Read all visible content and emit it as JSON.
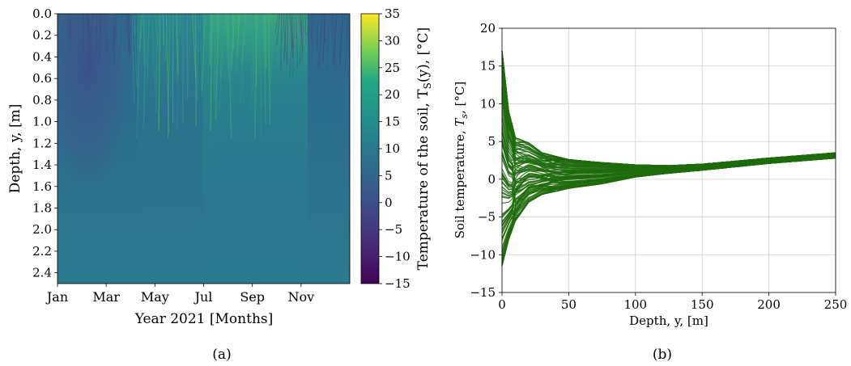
{
  "chart_data": [
    {
      "type": "heatmap",
      "panel_label": "(a)",
      "xlabel": "Year 2021 [Months]",
      "ylabel": "Depth, y, [m]",
      "colorbar_label": "Temperature of the soil, T_S(y), [°C]",
      "colorbar_label_parts": {
        "prefix": "Temperature of the soil, T",
        "sub": "S",
        "suffix": "(y), [°C]"
      },
      "colormap": "viridis",
      "x_ticks": [
        "Jan",
        "Mar",
        "May",
        "Jul",
        "Sep",
        "Nov"
      ],
      "y_ticks": [
        "0.0",
        "0.2",
        "0.4",
        "0.6",
        "0.8",
        "1.0",
        "1.2",
        "1.4",
        "1.6",
        "1.8",
        "2.0",
        "2.2",
        "2.4"
      ],
      "ylim": [
        2.5,
        0.0
      ],
      "clim": [
        -15,
        35
      ],
      "colorbar_ticks": [
        "35",
        "30",
        "25",
        "20",
        "15",
        "10",
        "5",
        "0",
        "−5",
        "−10",
        "−15"
      ]
    },
    {
      "type": "line",
      "panel_label": "(b)",
      "xlabel": "Depth, y, [m]",
      "ylabel": "Soil temperature, T_s, [°C]",
      "ylabel_parts": {
        "prefix": "Soil temperature, ",
        "var": "T",
        "sub": "s",
        "suffix": ", [°C]"
      },
      "xlim": [
        0,
        250
      ],
      "ylim": [
        -15,
        20
      ],
      "x_ticks": [
        "0",
        "50",
        "100",
        "150",
        "200",
        "250"
      ],
      "y_ticks": [
        "20",
        "15",
        "10",
        "5",
        "0",
        "−5",
        "−10",
        "−15"
      ],
      "grid": true,
      "line_color": "#1f6b0d",
      "series_count": 365,
      "envelope": {
        "depth": [
          0,
          5,
          10,
          20,
          30,
          50,
          75,
          100,
          125,
          150,
          200,
          250
        ],
        "upper": [
          17,
          9,
          5.5,
          4.8,
          3.5,
          2.6,
          2.2,
          1.9,
          1.8,
          2.0,
          2.8,
          3.5
        ],
        "lower": [
          -11.5,
          -8,
          -5.5,
          -3,
          -2,
          -1.2,
          -0.6,
          0.3,
          0.8,
          1.2,
          2.1,
          2.8
        ]
      }
    }
  ]
}
